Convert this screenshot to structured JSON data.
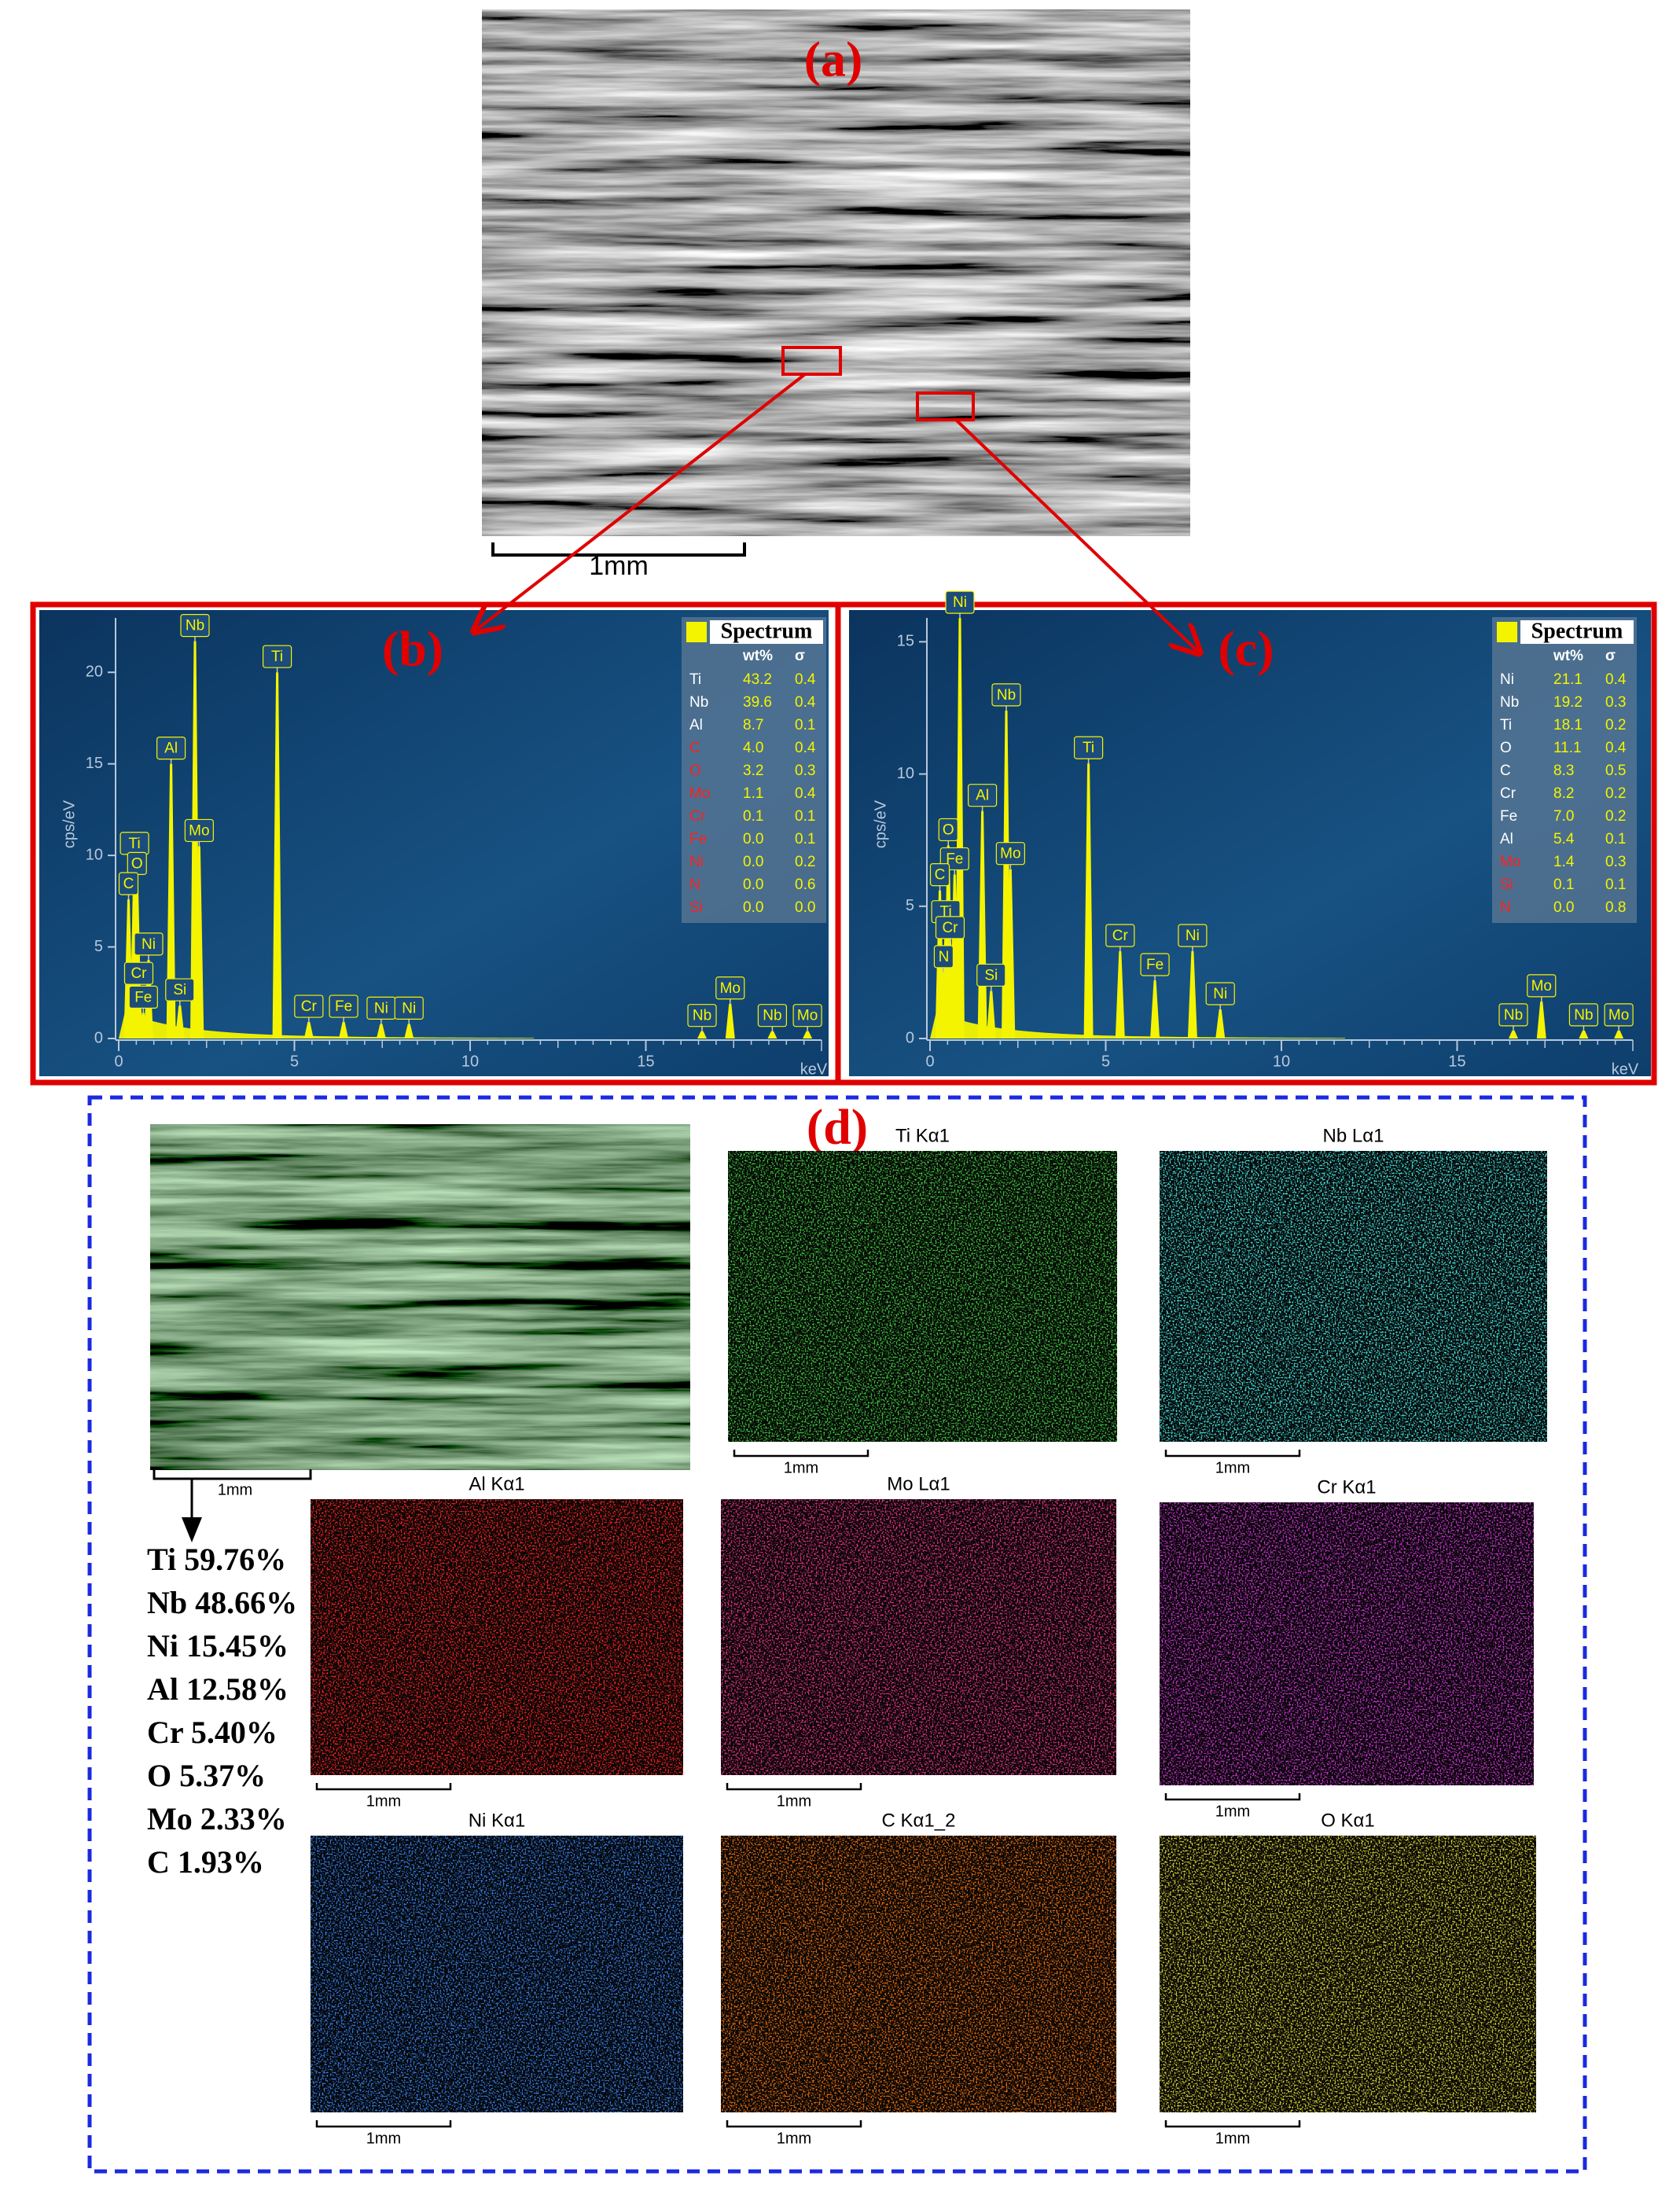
{
  "panel_a": {
    "label": "(a)",
    "scale_bar": "1mm"
  },
  "spectra": [
    {
      "label": "(b)",
      "x_label": "keV",
      "y_label": "cps/eV",
      "xlim": [
        0,
        20
      ],
      "ylim": [
        0,
        23.4
      ],
      "xticks": [
        0,
        5,
        10,
        15
      ],
      "yticks": [
        0,
        5,
        10,
        15,
        20
      ],
      "color": "#f4f400",
      "peaks": [
        {
          "label": "Nb",
          "x": 2.17,
          "y": 21.7
        },
        {
          "label": "Ti",
          "x": 4.51,
          "y": 20
        },
        {
          "label": "Al",
          "x": 1.49,
          "y": 15
        },
        {
          "label": "Mo",
          "x": 2.29,
          "y": 10.5
        },
        {
          "label": "Ti",
          "x": 0.45,
          "y": 9.8
        },
        {
          "label": "O",
          "x": 0.52,
          "y": 8.7
        },
        {
          "label": "C",
          "x": 0.28,
          "y": 7.6
        },
        {
          "label": "Ni",
          "x": 0.85,
          "y": 4.3
        },
        {
          "label": "Cr",
          "x": 0.57,
          "y": 2.7
        },
        {
          "label": "Fe",
          "x": 0.7,
          "y": 1.4
        },
        {
          "label": "Si",
          "x": 1.74,
          "y": 1.8
        },
        {
          "label": "Cr",
          "x": 5.41,
          "y": 0.9
        },
        {
          "label": "Fe",
          "x": 6.4,
          "y": 0.9
        },
        {
          "label": "Ni",
          "x": 7.47,
          "y": 0.8
        },
        {
          "label": "Ni",
          "x": 8.26,
          "y": 0.8
        },
        {
          "label": "Nb",
          "x": 16.6,
          "y": 0.4
        },
        {
          "label": "Mo",
          "x": 17.4,
          "y": 1.9
        },
        {
          "label": "Nb",
          "x": 18.6,
          "y": 0.4
        },
        {
          "label": "Mo",
          "x": 19.6,
          "y": 0.4
        }
      ],
      "table": {
        "title": "Spectrum",
        "columns": [
          "wt%",
          "σ"
        ],
        "rows": [
          {
            "element": "Ti",
            "wt": "43.2",
            "sigma": "0.4",
            "color": "#ffffff"
          },
          {
            "element": "Nb",
            "wt": "39.6",
            "sigma": "0.4",
            "color": "#ffffff"
          },
          {
            "element": "Al",
            "wt": "8.7",
            "sigma": "0.1",
            "color": "#ffffff"
          },
          {
            "element": "C",
            "wt": "4.0",
            "sigma": "0.4",
            "color": "#ff2020"
          },
          {
            "element": "O",
            "wt": "3.2",
            "sigma": "0.3",
            "color": "#ff2020"
          },
          {
            "element": "Mo",
            "wt": "1.1",
            "sigma": "0.4",
            "color": "#ff2020"
          },
          {
            "element": "Cr",
            "wt": "0.1",
            "sigma": "0.1",
            "color": "#ff2020"
          },
          {
            "element": "Fe",
            "wt": "0.0",
            "sigma": "0.1",
            "color": "#ff2020"
          },
          {
            "element": "Ni",
            "wt": "0.0",
            "sigma": "0.2",
            "color": "#ff2020"
          },
          {
            "element": "N",
            "wt": "0.0",
            "sigma": "0.6",
            "color": "#ff2020"
          },
          {
            "element": "Si",
            "wt": "0.0",
            "sigma": "0.0",
            "color": "#ff2020"
          }
        ]
      }
    },
    {
      "label": "(c)",
      "x_label": "keV",
      "y_label": "cps/eV",
      "xlim": [
        0,
        20
      ],
      "ylim": [
        0,
        16.2
      ],
      "xticks": [
        0,
        5,
        10,
        15
      ],
      "yticks": [
        0,
        5,
        10,
        15
      ],
      "color": "#f4f400",
      "peaks": [
        {
          "label": "Ni",
          "x": 0.85,
          "y": 15.9
        },
        {
          "label": "Nb",
          "x": 2.17,
          "y": 12.4
        },
        {
          "label": "Al",
          "x": 1.49,
          "y": 8.6
        },
        {
          "label": "Ti",
          "x": 4.51,
          "y": 10.4
        },
        {
          "label": "Mo",
          "x": 2.29,
          "y": 6.4
        },
        {
          "label": "O",
          "x": 0.52,
          "y": 7.3
        },
        {
          "label": "Fe",
          "x": 0.7,
          "y": 6.2
        },
        {
          "label": "C",
          "x": 0.28,
          "y": 5.6
        },
        {
          "label": "Ti",
          "x": 0.45,
          "y": 4.2
        },
        {
          "label": "Cr",
          "x": 0.57,
          "y": 3.6
        },
        {
          "label": "N",
          "x": 0.39,
          "y": 2.5
        },
        {
          "label": "Si",
          "x": 1.74,
          "y": 1.8
        },
        {
          "label": "Cr",
          "x": 5.41,
          "y": 3.3
        },
        {
          "label": "Fe",
          "x": 6.4,
          "y": 2.2
        },
        {
          "label": "Ni",
          "x": 7.47,
          "y": 3.3
        },
        {
          "label": "Ni",
          "x": 8.26,
          "y": 1.1
        },
        {
          "label": "Nb",
          "x": 16.6,
          "y": 0.3
        },
        {
          "label": "Mo",
          "x": 17.4,
          "y": 1.4
        },
        {
          "label": "Nb",
          "x": 18.6,
          "y": 0.3
        },
        {
          "label": "Mo",
          "x": 19.6,
          "y": 0.3
        }
      ],
      "table": {
        "title": "Spectrum",
        "columns": [
          "wt%",
          "σ"
        ],
        "rows": [
          {
            "element": "Ni",
            "wt": "21.1",
            "sigma": "0.4",
            "color": "#ffffff"
          },
          {
            "element": "Nb",
            "wt": "19.2",
            "sigma": "0.3",
            "color": "#ffffff"
          },
          {
            "element": "Ti",
            "wt": "18.1",
            "sigma": "0.2",
            "color": "#ffffff"
          },
          {
            "element": "O",
            "wt": "11.1",
            "sigma": "0.4",
            "color": "#ffffff"
          },
          {
            "element": "C",
            "wt": "8.3",
            "sigma": "0.5",
            "color": "#ffffff"
          },
          {
            "element": "Cr",
            "wt": "8.2",
            "sigma": "0.2",
            "color": "#ffffff"
          },
          {
            "element": "Fe",
            "wt": "7.0",
            "sigma": "0.2",
            "color": "#ffffff"
          },
          {
            "element": "Al",
            "wt": "5.4",
            "sigma": "0.1",
            "color": "#ffffff"
          },
          {
            "element": "Mo",
            "wt": "1.4",
            "sigma": "0.3",
            "color": "#ff2020"
          },
          {
            "element": "Si",
            "wt": "0.1",
            "sigma": "0.1",
            "color": "#ff2020"
          },
          {
            "element": "N",
            "wt": "0.0",
            "sigma": "0.8",
            "color": "#ff2020"
          }
        ]
      }
    }
  ],
  "panel_d": {
    "label": "(d)",
    "composite_scale_bar": "1mm",
    "composition": [
      "Ti 59.76%",
      "Nb 48.66%",
      "Ni 15.45%",
      "Al 12.58%",
      "Cr 5.40%",
      "O 5.37%",
      "Mo 2.33%",
      "C 1.93%"
    ],
    "maps": [
      {
        "title": "Ti Kα1",
        "scale_bar": "1mm",
        "color": "#3cc03c"
      },
      {
        "title": "Nb Lα1",
        "scale_bar": "1mm",
        "color": "#40d8d8"
      },
      {
        "title": "Al Kα1",
        "scale_bar": "1mm",
        "color": "#e82020"
      },
      {
        "title": "Mo Lα1",
        "scale_bar": "1mm",
        "color": "#d8307c"
      },
      {
        "title": "Cr Kα1",
        "scale_bar": "1mm",
        "color": "#c030c8"
      },
      {
        "title": "Ni Kα1",
        "scale_bar": "1mm",
        "color": "#3078e0"
      },
      {
        "title": "C Kα1_2",
        "scale_bar": "1mm",
        "color": "#e06810"
      },
      {
        "title": "O Kα1",
        "scale_bar": "1mm",
        "color": "#d0c830"
      }
    ]
  }
}
